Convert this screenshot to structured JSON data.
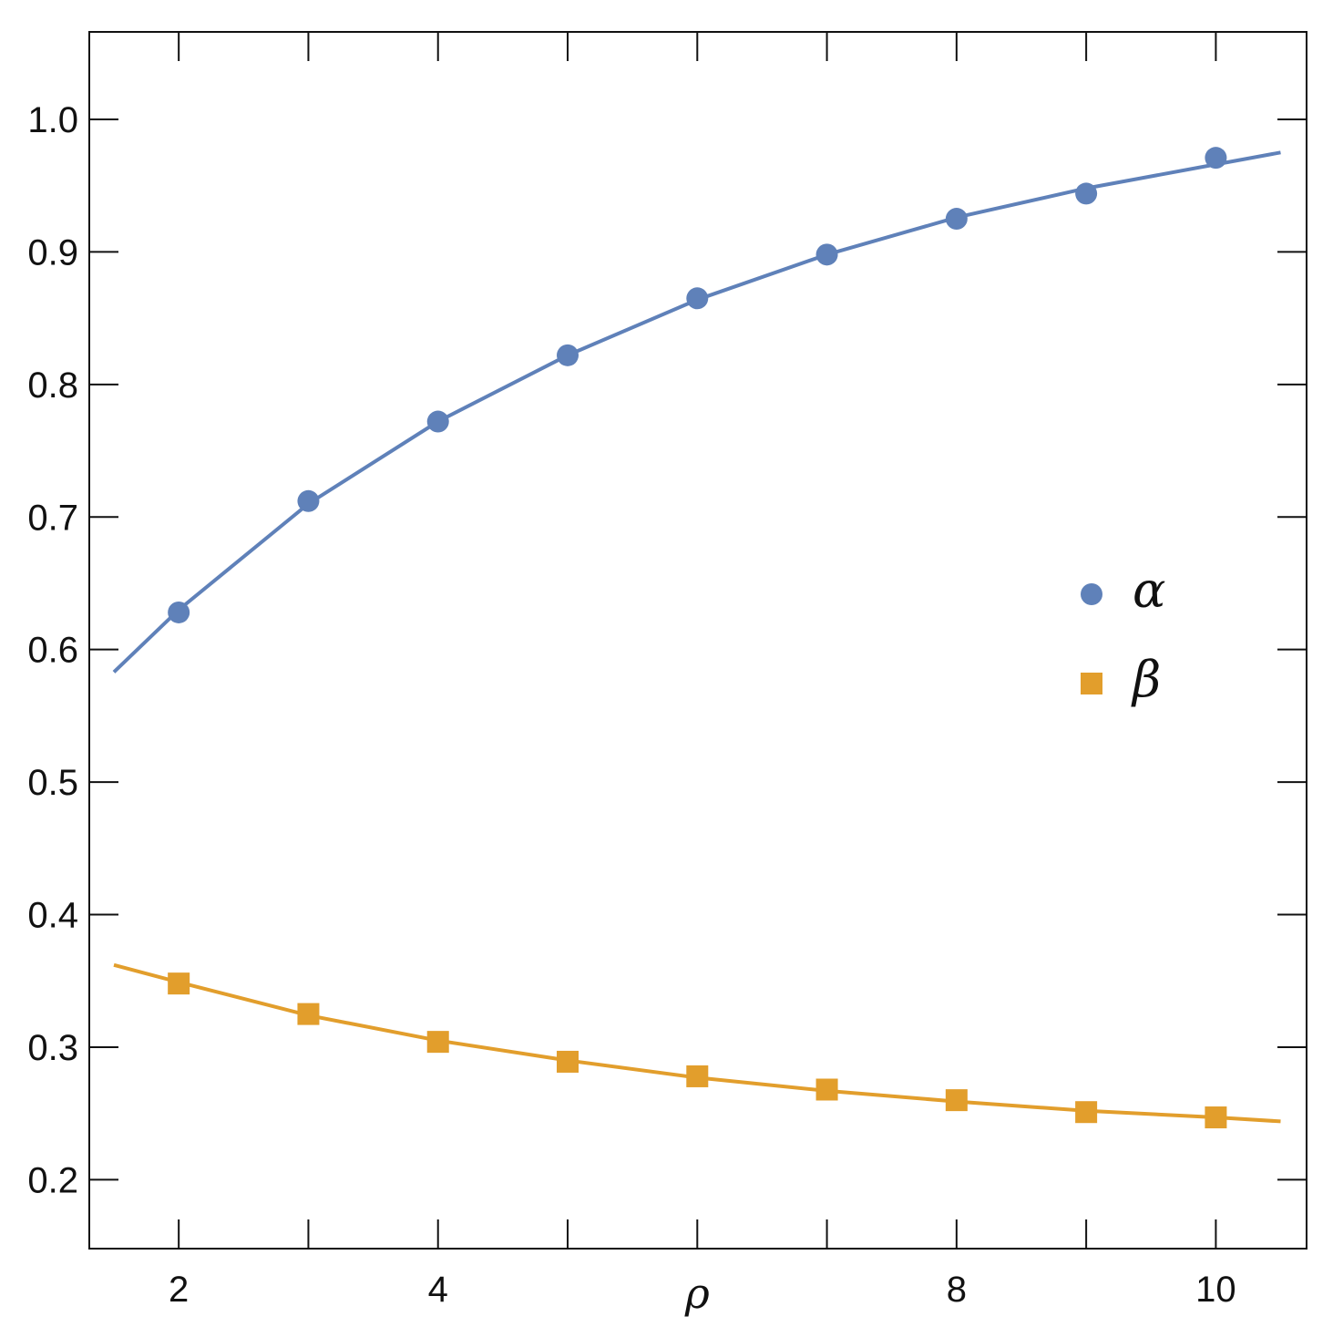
{
  "chart_data": {
    "type": "scatter",
    "xlabel": "ρ",
    "ylabel": "",
    "xlim": [
      1.31,
      10.7
    ],
    "ylim": [
      0.148,
      1.066
    ],
    "x_ticks_major": [
      2,
      4,
      8,
      10
    ],
    "x_ticks_minor": [
      3,
      5,
      6,
      7,
      9
    ],
    "y_ticks": [
      0.2,
      0.3,
      0.4,
      0.5,
      0.6,
      0.7,
      0.8,
      0.9,
      1.0
    ],
    "y_tick_labels": [
      "0.2",
      "0.3",
      "0.4",
      "0.5",
      "0.6",
      "0.7",
      "0.8",
      "0.9",
      "1.0"
    ],
    "x_tick_labels": [
      "2",
      "4",
      "8",
      "10"
    ],
    "grid": false,
    "legend_position": "right-middle",
    "series": [
      {
        "name": "α",
        "marker": "circle",
        "color": "#5f81b9",
        "x": [
          2,
          3,
          4,
          5,
          6,
          7,
          8,
          9,
          10
        ],
        "y": [
          0.628,
          0.712,
          0.772,
          0.822,
          0.865,
          0.898,
          0.925,
          0.944,
          0.971
        ],
        "fit_x": [
          1.5,
          2,
          3,
          4,
          5,
          6,
          7,
          8,
          9,
          10,
          10.5
        ],
        "fit_y": [
          0.583,
          0.63,
          0.71,
          0.772,
          0.822,
          0.864,
          0.898,
          0.926,
          0.948,
          0.966,
          0.975
        ]
      },
      {
        "name": "β",
        "marker": "square",
        "color": "#e29e2c",
        "x": [
          2,
          3,
          4,
          5,
          6,
          7,
          8,
          9,
          10
        ],
        "y": [
          0.348,
          0.325,
          0.304,
          0.289,
          0.278,
          0.268,
          0.26,
          0.251,
          0.247
        ],
        "fit_x": [
          1.5,
          2,
          3,
          4,
          5,
          6,
          7,
          8,
          9,
          10,
          10.5
        ],
        "fit_y": [
          0.362,
          0.349,
          0.324,
          0.305,
          0.29,
          0.277,
          0.267,
          0.259,
          0.252,
          0.247,
          0.244
        ]
      }
    ]
  }
}
